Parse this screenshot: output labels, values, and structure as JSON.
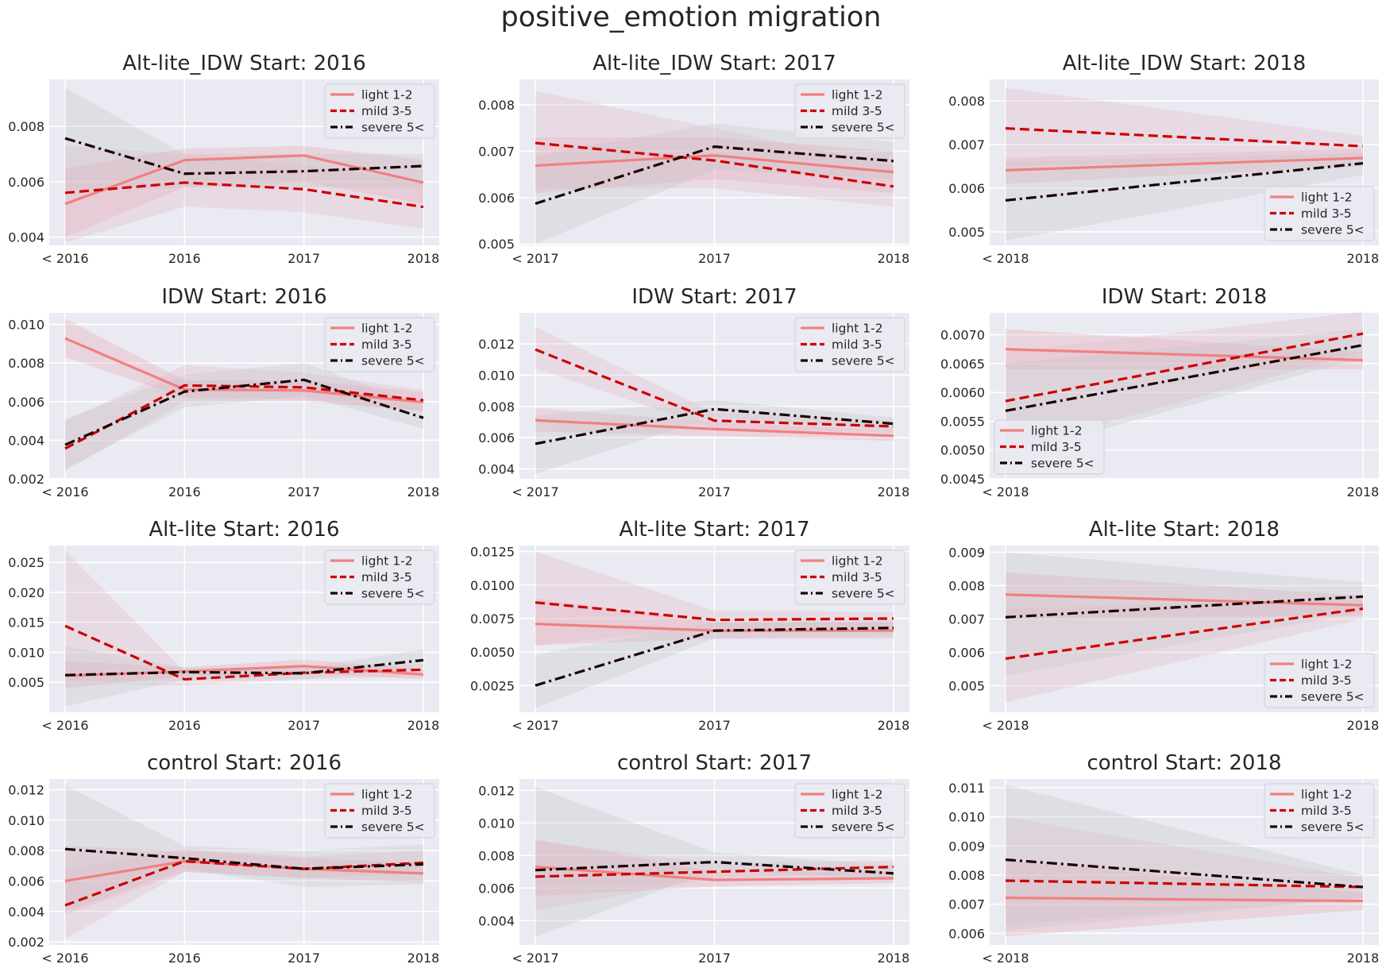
{
  "suptitle": "positive_emotion migration",
  "colors": {
    "light": "#f08080",
    "mild": "#cc0000",
    "severe": "#1a0000",
    "band_light": "#e8a3b0",
    "band_mild": "#e4b7c4",
    "band_severe": "#c2c2c8",
    "axes_bg": "#eaeaf2",
    "grid": "#ffffff"
  },
  "legend_labels": [
    "light 1-2",
    "mild 3-5",
    "severe 5<"
  ],
  "chart_data": [
    {
      "type": "line",
      "title": "Alt-lite_IDW Start: 2016",
      "categories": [
        "< 2016",
        "2016",
        "2017",
        "2018"
      ],
      "yticks": [
        "0.004",
        "0.006",
        "0.008"
      ],
      "ylim": [
        0.0037,
        0.0097
      ],
      "grid": true,
      "legend": "top-right",
      "series": [
        {
          "name": "light 1-2",
          "values": [
            0.0052,
            0.00678,
            0.00695,
            0.00597
          ],
          "ci_low": [
            0.004,
            0.0058,
            0.006,
            0.0052
          ],
          "ci_high": [
            0.0065,
            0.0072,
            0.0073,
            0.0068
          ]
        },
        {
          "name": "mild 3-5",
          "values": [
            0.0056,
            0.00597,
            0.00573,
            0.00509
          ],
          "ci_low": [
            0.0038,
            0.0051,
            0.0049,
            0.0043
          ],
          "ci_high": [
            0.0073,
            0.007,
            0.0066,
            0.006
          ]
        },
        {
          "name": "severe 5<",
          "values": [
            0.00757,
            0.00629,
            0.00638,
            0.00657
          ],
          "ci_low": [
            0.0057,
            0.0058,
            0.0058,
            0.0058
          ],
          "ci_high": [
            0.0094,
            0.007,
            0.007,
            0.007
          ]
        }
      ]
    },
    {
      "type": "line",
      "title": "Alt-lite_IDW Start: 2017",
      "categories": [
        "< 2017",
        "2017",
        "2018"
      ],
      "yticks": [
        "0.005",
        "0.006",
        "0.007",
        "0.008"
      ],
      "ylim": [
        0.00497,
        0.00855
      ],
      "grid": true,
      "legend": "top-right",
      "series": [
        {
          "name": "light 1-2",
          "values": [
            0.00669,
            0.00691,
            0.00655
          ],
          "ci_low": [
            0.0061,
            0.0064,
            0.0061
          ],
          "ci_high": [
            0.0073,
            0.0073,
            0.007
          ]
        },
        {
          "name": "mild 3-5",
          "values": [
            0.00718,
            0.0068,
            0.00624
          ],
          "ci_low": [
            0.0062,
            0.0062,
            0.0058
          ],
          "ci_high": [
            0.0083,
            0.0075,
            0.0067
          ]
        },
        {
          "name": "severe 5<",
          "values": [
            0.00587,
            0.0071,
            0.00679
          ],
          "ci_low": [
            0.005,
            0.0066,
            0.0064
          ],
          "ci_high": [
            0.0069,
            0.0076,
            0.0072
          ]
        }
      ]
    },
    {
      "type": "line",
      "title": "Alt-lite_IDW Start: 2018",
      "categories": [
        "< 2018",
        "2018"
      ],
      "yticks": [
        "0.005",
        "0.006",
        "0.007",
        "0.008"
      ],
      "ylim": [
        0.00469,
        0.00849
      ],
      "grid": true,
      "legend": "lower-right",
      "series": [
        {
          "name": "light 1-2",
          "values": [
            0.00641,
            0.00669
          ],
          "ci_low": [
            0.0061,
            0.0065
          ],
          "ci_high": [
            0.0067,
            0.0069
          ]
        },
        {
          "name": "mild 3-5",
          "values": [
            0.00737,
            0.00696
          ],
          "ci_low": [
            0.0065,
            0.0067
          ],
          "ci_high": [
            0.0083,
            0.0072
          ]
        },
        {
          "name": "severe 5<",
          "values": [
            0.00572,
            0.00657
          ],
          "ci_low": [
            0.0048,
            0.0063
          ],
          "ci_high": [
            0.0066,
            0.0068
          ]
        }
      ]
    },
    {
      "type": "line",
      "title": "IDW Start: 2016",
      "categories": [
        "< 2016",
        "2016",
        "2017",
        "2018"
      ],
      "yticks": [
        "0.002",
        "0.004",
        "0.006",
        "0.008",
        "0.010"
      ],
      "ylim": [
        0.002,
        0.0106
      ],
      "grid": true,
      "legend": "top-right",
      "series": [
        {
          "name": "light 1-2",
          "values": [
            0.00928,
            0.00663,
            0.00658,
            0.00597
          ],
          "ci_low": [
            0.0083,
            0.0062,
            0.0061,
            0.0055
          ],
          "ci_high": [
            0.0103,
            0.0071,
            0.0071,
            0.0065
          ]
        },
        {
          "name": "mild 3-5",
          "values": [
            0.00357,
            0.00684,
            0.00674,
            0.00607
          ],
          "ci_low": [
            0.0024,
            0.006,
            0.006,
            0.0055
          ],
          "ci_high": [
            0.005,
            0.0079,
            0.0075,
            0.0066
          ]
        },
        {
          "name": "severe 5<",
          "values": [
            0.00376,
            0.00652,
            0.00713,
            0.00516
          ],
          "ci_low": [
            0.0025,
            0.0057,
            0.0063,
            0.0046
          ],
          "ci_high": [
            0.0051,
            0.0074,
            0.008,
            0.0058
          ]
        }
      ]
    },
    {
      "type": "line",
      "title": "IDW Start: 2017",
      "categories": [
        "< 2017",
        "2017",
        "2018"
      ],
      "yticks": [
        "0.004",
        "0.006",
        "0.008",
        "0.010",
        "0.012"
      ],
      "ylim": [
        0.00337,
        0.01398
      ],
      "grid": true,
      "legend": "top-right",
      "series": [
        {
          "name": "light 1-2",
          "values": [
            0.00711,
            0.00655,
            0.00612
          ],
          "ci_low": [
            0.0064,
            0.0061,
            0.0058
          ],
          "ci_high": [
            0.0079,
            0.007,
            0.0065
          ]
        },
        {
          "name": "mild 3-5",
          "values": [
            0.01164,
            0.00709,
            0.00672
          ],
          "ci_low": [
            0.0104,
            0.0066,
            0.0063
          ],
          "ci_high": [
            0.0131,
            0.0076,
            0.0071
          ]
        },
        {
          "name": "severe 5<",
          "values": [
            0.00561,
            0.00783,
            0.00689
          ],
          "ci_low": [
            0.0037,
            0.0073,
            0.0065
          ],
          "ci_high": [
            0.0074,
            0.0084,
            0.0073
          ]
        }
      ]
    },
    {
      "type": "line",
      "title": "IDW Start: 2018",
      "categories": [
        "< 2018",
        "2018"
      ],
      "yticks": [
        "0.0045",
        "0.0050",
        "0.0055",
        "0.0060",
        "0.0065",
        "0.0070"
      ],
      "ylim": [
        0.0045,
        0.00738
      ],
      "grid": true,
      "legend": "lower-left",
      "series": [
        {
          "name": "light 1-2",
          "values": [
            0.00675,
            0.00656
          ],
          "ci_low": [
            0.0064,
            0.0064
          ],
          "ci_high": [
            0.0071,
            0.0067
          ]
        },
        {
          "name": "mild 3-5",
          "values": [
            0.00585,
            0.00702
          ],
          "ci_low": [
            0.005,
            0.0067
          ],
          "ci_high": [
            0.0067,
            0.0074
          ]
        },
        {
          "name": "severe 5<",
          "values": [
            0.00568,
            0.00682
          ],
          "ci_low": [
            0.0049,
            0.0066
          ],
          "ci_high": [
            0.0065,
            0.0071
          ]
        }
      ]
    },
    {
      "type": "line",
      "title": "Alt-lite Start: 2016",
      "categories": [
        "< 2016",
        "2016",
        "2017",
        "2018"
      ],
      "yticks": [
        "0.005",
        "0.010",
        "0.015",
        "0.020",
        "0.025"
      ],
      "ylim": [
        0.0,
        0.0278
      ],
      "grid": true,
      "legend": "top-right",
      "series": [
        {
          "name": "light 1-2",
          "values": [
            0.0061,
            0.0068,
            0.0077,
            0.0063
          ],
          "ci_low": [
            0.004,
            0.006,
            0.0065,
            0.0055
          ],
          "ci_high": [
            0.0085,
            0.0075,
            0.0088,
            0.0072
          ]
        },
        {
          "name": "mild 3-5",
          "values": [
            0.0144,
            0.0055,
            0.0066,
            0.0071
          ],
          "ci_low": [
            0.005,
            0.0045,
            0.0055,
            0.006
          ],
          "ci_high": [
            0.027,
            0.0068,
            0.0078,
            0.008
          ]
        },
        {
          "name": "severe 5<",
          "values": [
            0.0062,
            0.0067,
            0.0065,
            0.0087
          ],
          "ci_low": [
            0.001,
            0.0055,
            0.0055,
            0.0075
          ],
          "ci_high": [
            0.011,
            0.0075,
            0.0075,
            0.0105
          ]
        }
      ]
    },
    {
      "type": "line",
      "title": "Alt-lite Start: 2017",
      "categories": [
        "< 2017",
        "2017",
        "2018"
      ],
      "yticks": [
        "0.0025",
        "0.0050",
        "0.0075",
        "0.0100",
        "0.0125"
      ],
      "ylim": [
        0.0005,
        0.01295
      ],
      "grid": true,
      "legend": "top-right",
      "series": [
        {
          "name": "light 1-2",
          "values": [
            0.0071,
            0.0066,
            0.0066
          ],
          "ci_low": [
            0.0055,
            0.006,
            0.006
          ],
          "ci_high": [
            0.009,
            0.0072,
            0.0072
          ]
        },
        {
          "name": "mild 3-5",
          "values": [
            0.0087,
            0.0074,
            0.0075
          ],
          "ci_low": [
            0.0055,
            0.0068,
            0.0068
          ],
          "ci_high": [
            0.0125,
            0.0081,
            0.008
          ]
        },
        {
          "name": "severe 5<",
          "values": [
            0.0025,
            0.0066,
            0.0068
          ],
          "ci_low": [
            0.0008,
            0.006,
            0.0062
          ],
          "ci_high": [
            0.0048,
            0.0072,
            0.0073
          ]
        }
      ]
    },
    {
      "type": "line",
      "title": "Alt-lite Start: 2018",
      "categories": [
        "< 2018",
        "2018"
      ],
      "yticks": [
        "0.005",
        "0.006",
        "0.007",
        "0.008",
        "0.009"
      ],
      "ylim": [
        0.0042,
        0.0092
      ],
      "grid": true,
      "legend": "lower-right",
      "series": [
        {
          "name": "light 1-2",
          "values": [
            0.00773,
            0.00741
          ],
          "ci_low": [
            0.007,
            0.0071
          ],
          "ci_high": [
            0.0084,
            0.0077
          ]
        },
        {
          "name": "mild 3-5",
          "values": [
            0.00581,
            0.00731
          ],
          "ci_low": [
            0.0045,
            0.007
          ],
          "ci_high": [
            0.0073,
            0.0076
          ]
        },
        {
          "name": "severe 5<",
          "values": [
            0.00705,
            0.00767
          ],
          "ci_low": [
            0.0053,
            0.0072
          ],
          "ci_high": [
            0.009,
            0.0081
          ]
        }
      ]
    },
    {
      "type": "line",
      "title": "control Start: 2016",
      "categories": [
        "< 2016",
        "2016",
        "2017",
        "2018"
      ],
      "yticks": [
        "0.002",
        "0.004",
        "0.006",
        "0.008",
        "0.010",
        "0.012"
      ],
      "ylim": [
        0.0018,
        0.0127
      ],
      "grid": true,
      "legend": "top-right",
      "series": [
        {
          "name": "light 1-2",
          "values": [
            0.006,
            0.0073,
            0.0068,
            0.0065
          ],
          "ci_low": [
            0.0038,
            0.0066,
            0.0062,
            0.0059
          ],
          "ci_high": [
            0.0083,
            0.008,
            0.0075,
            0.0072
          ]
        },
        {
          "name": "mild 3-5",
          "values": [
            0.0044,
            0.0073,
            0.0068,
            0.0072
          ],
          "ci_low": [
            0.0022,
            0.0066,
            0.0062,
            0.0065
          ],
          "ci_high": [
            0.0068,
            0.0081,
            0.0076,
            0.008
          ]
        },
        {
          "name": "severe 5<",
          "values": [
            0.0081,
            0.0075,
            0.0068,
            0.0071
          ],
          "ci_low": [
            0.004,
            0.0068,
            0.0056,
            0.0058
          ],
          "ci_high": [
            0.0123,
            0.0083,
            0.008,
            0.0084
          ]
        }
      ]
    },
    {
      "type": "line",
      "title": "control Start: 2017",
      "categories": [
        "< 2017",
        "2017",
        "2018"
      ],
      "yticks": [
        "0.004",
        "0.006",
        "0.008",
        "0.010",
        "0.012"
      ],
      "ylim": [
        0.0025,
        0.0127
      ],
      "grid": true,
      "legend": "top-right",
      "series": [
        {
          "name": "light 1-2",
          "values": [
            0.0073,
            0.0065,
            0.0066
          ],
          "ci_low": [
            0.0055,
            0.0061,
            0.0063
          ],
          "ci_high": [
            0.009,
            0.007,
            0.007
          ]
        },
        {
          "name": "mild 3-5",
          "values": [
            0.0067,
            0.007,
            0.0073
          ],
          "ci_low": [
            0.0046,
            0.0066,
            0.0069
          ],
          "ci_high": [
            0.0089,
            0.0075,
            0.0077
          ]
        },
        {
          "name": "severe 5<",
          "values": [
            0.0071,
            0.0076,
            0.0069
          ],
          "ci_low": [
            0.003,
            0.0071,
            0.0065
          ],
          "ci_high": [
            0.0122,
            0.0082,
            0.0074
          ]
        }
      ]
    },
    {
      "type": "line",
      "title": "control Start: 2018",
      "categories": [
        "< 2018",
        "2018"
      ],
      "yticks": [
        "0.006",
        "0.007",
        "0.008",
        "0.009",
        "0.010",
        "0.011"
      ],
      "ylim": [
        0.0056,
        0.0113
      ],
      "grid": true,
      "legend": "top-right",
      "series": [
        {
          "name": "light 1-2",
          "values": [
            0.00722,
            0.00711
          ],
          "ci_low": [
            0.0059,
            0.0068
          ],
          "ci_high": [
            0.0085,
            0.0074
          ]
        },
        {
          "name": "mild 3-5",
          "values": [
            0.00781,
            0.00759
          ],
          "ci_low": [
            0.0063,
            0.0072
          ],
          "ci_high": [
            0.01,
            0.0079
          ]
        },
        {
          "name": "severe 5<",
          "values": [
            0.00853,
            0.00759
          ],
          "ci_low": [
            0.0061,
            0.0072
          ],
          "ci_high": [
            0.0111,
            0.008
          ]
        }
      ]
    }
  ]
}
